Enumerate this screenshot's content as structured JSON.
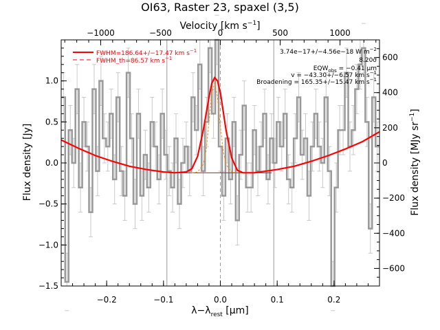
{
  "title": "OI63, Raster 23, spaxel (3,5)",
  "axis_labels": {
    "bottom_main": "λ−λ",
    "bottom_sub": "rest",
    "bottom_unit": " [μm]",
    "left": "Flux density [Jy]",
    "top_main": "Velocity [km s",
    "top_sup": "−1",
    "top_close": "]",
    "right_main": "Flux density [MJy sr",
    "right_sup": "−1",
    "right_close": "]"
  },
  "ticks": {
    "bottom": [
      "−0.2",
      "−0.1",
      "0.0",
      "0.1",
      "0.2"
    ],
    "left": [
      "−1.5",
      "−1.0",
      "−0.5",
      "0.0",
      "0.5",
      "1.0"
    ],
    "top": [
      "−1000",
      "−500",
      "0",
      "500",
      "1000"
    ],
    "right": [
      "−600",
      "−400",
      "−200",
      "0",
      "200",
      "400",
      "600"
    ]
  },
  "legend": [
    {
      "label": "FWHM=186.64+/−17.47 km s",
      "sup": "−1",
      "style": "solid",
      "color": "#ff0000"
    },
    {
      "label": "FWHM_th=86.57 km s",
      "sup": "−1",
      "style": "dashed",
      "color": "#ff0000"
    }
  ],
  "annotations": [
    {
      "text": "3.74e−17+/−4.56e−18 W m",
      "sup": "−2",
      "sub": ""
    },
    {
      "text": "8.20σ",
      "sup": "",
      "sub": ""
    },
    {
      "text": "EQW",
      "sub": "obs",
      "after": " = −0.41 μm",
      "sup": ""
    },
    {
      "text": "v = −43.30+/−6.57 km s",
      "sup": "−1",
      "sub": ""
    },
    {
      "text": "Broadening = 165.35+/−15.47 km s",
      "sup": "−1",
      "sub": ""
    }
  ],
  "colors": {
    "data": "#999999",
    "errorbar": "#c8c8c8",
    "fit": "#ff0000",
    "component": "#ff8c00",
    "vlines": "#999999",
    "axes": "#000000"
  },
  "chart_data": {
    "type": "line",
    "title": "OI63, Raster 23, spaxel (3,5)",
    "xlabel": "λ−λrest [μm]",
    "ylabel": "Flux density [Jy]",
    "x2label": "Velocity [km s−1]",
    "y2label": "Flux density [MJy sr−1]",
    "xlim": [
      -0.28,
      0.28
    ],
    "ylim": [
      -1.5,
      1.5
    ],
    "x2lim": [
      -1330,
      1330
    ],
    "y2lim": [
      -700,
      700
    ],
    "vlines": [
      -0.094,
      0.0,
      0.094
    ],
    "grid": false,
    "legend_position": "top-left",
    "annotation_position": "top-right",
    "series": [
      {
        "name": "data",
        "x": [
          -0.276,
          -0.27,
          -0.264,
          -0.258,
          -0.252,
          -0.246,
          -0.24,
          -0.234,
          -0.228,
          -0.222,
          -0.216,
          -0.21,
          -0.204,
          -0.198,
          -0.192,
          -0.186,
          -0.18,
          -0.174,
          -0.168,
          -0.162,
          -0.156,
          -0.15,
          -0.144,
          -0.138,
          -0.132,
          -0.126,
          -0.12,
          -0.114,
          -0.108,
          -0.102,
          -0.096,
          -0.09,
          -0.084,
          -0.078,
          -0.072,
          -0.066,
          -0.06,
          -0.054,
          -0.048,
          -0.042,
          -0.036,
          -0.03,
          -0.024,
          -0.018,
          -0.012,
          -0.006,
          0.0,
          0.006,
          0.012,
          0.018,
          0.024,
          0.03,
          0.036,
          0.042,
          0.048,
          0.054,
          0.06,
          0.066,
          0.072,
          0.078,
          0.084,
          0.09,
          0.096,
          0.102,
          0.108,
          0.114,
          0.12,
          0.126,
          0.132,
          0.138,
          0.144,
          0.15,
          0.156,
          0.162,
          0.168,
          0.174,
          0.18,
          0.186,
          0.192,
          0.198,
          0.204,
          0.21,
          0.216,
          0.222,
          0.228,
          0.234,
          0.24,
          0.246,
          0.252,
          0.258,
          0.264,
          0.27,
          0.276
        ],
        "y": [
          0.8,
          -1.45,
          0.4,
          0.0,
          0.9,
          -0.3,
          0.5,
          0.2,
          -0.6,
          0.9,
          -0.1,
          1.0,
          0.3,
          0.2,
          0.6,
          -0.2,
          0.8,
          -0.1,
          -0.4,
          1.1,
          0.3,
          -0.5,
          0.6,
          -0.4,
          0.1,
          -0.3,
          0.5,
          0.2,
          -0.2,
          0.6,
          0.1,
          -0.1,
          -0.3,
          0.3,
          -0.5,
          0.0,
          0.2,
          -0.1,
          0.8,
          0.4,
          1.2,
          -0.1,
          0.5,
          1.4,
          0.6,
          1.5,
          0.2,
          -0.4,
          0.3,
          -0.2,
          0.5,
          -0.7,
          0.1,
          0.7,
          -0.3,
          -0.3,
          0.4,
          -0.1,
          0.2,
          0.6,
          -0.2,
          0.3,
          0.0,
          0.5,
          0.2,
          0.6,
          -0.2,
          -0.3,
          0.3,
          0.8,
          0.1,
          0.3,
          -0.4,
          0.2,
          0.6,
          0.2,
          0.0,
          0.8,
          -0.1,
          -1.5,
          -0.3,
          0.4,
          0.4,
          1.1,
          0.2,
          0.4,
          0.9,
          1.2,
          1.4,
          0.5,
          -0.8,
          0.8,
          0.2
        ],
        "err": [
          0.3,
          0.35,
          0.3,
          0.3,
          0.3,
          0.3,
          0.3,
          0.3,
          0.3,
          0.3,
          0.3,
          0.3,
          0.3,
          0.3,
          0.3,
          0.3,
          0.3,
          0.3,
          0.3,
          0.3,
          0.3,
          0.3,
          0.3,
          0.3,
          0.3,
          0.3,
          0.3,
          0.3,
          0.3,
          0.3,
          0.3,
          0.3,
          0.3,
          0.3,
          0.3,
          0.3,
          0.3,
          0.3,
          0.3,
          0.3,
          0.3,
          0.3,
          0.3,
          0.3,
          0.3,
          0.3,
          0.3,
          0.3,
          0.3,
          0.3,
          0.3,
          0.3,
          0.3,
          0.3,
          0.3,
          0.3,
          0.3,
          0.3,
          0.3,
          0.3,
          0.3,
          0.3,
          0.3,
          0.3,
          0.3,
          0.3,
          0.3,
          0.3,
          0.3,
          0.3,
          0.3,
          0.3,
          0.3,
          0.3,
          0.3,
          0.3,
          0.3,
          0.3,
          0.3,
          0.3,
          0.3,
          0.3,
          0.3,
          0.3,
          0.3,
          0.3,
          0.3,
          0.3,
          0.3,
          0.3,
          0.3,
          0.3,
          0.3
        ]
      },
      {
        "name": "FWHM=186.64+/−17.47 km s−1",
        "style": "solid",
        "x": [
          -0.28,
          -0.25,
          -0.22,
          -0.19,
          -0.16,
          -0.13,
          -0.1,
          -0.08,
          -0.06,
          -0.05,
          -0.04,
          -0.03,
          -0.02,
          -0.015,
          -0.01,
          -0.005,
          0.0,
          0.01,
          0.02,
          0.03,
          0.04,
          0.06,
          0.08,
          0.1,
          0.13,
          0.16,
          0.19,
          0.22,
          0.25,
          0.28
        ],
        "y": [
          0.28,
          0.18,
          0.09,
          0.02,
          -0.04,
          -0.08,
          -0.11,
          -0.12,
          -0.11,
          -0.07,
          0.08,
          0.4,
          0.8,
          0.97,
          1.04,
          1.0,
          0.86,
          0.4,
          0.06,
          -0.09,
          -0.12,
          -0.12,
          -0.1,
          -0.08,
          -0.04,
          0.02,
          0.09,
          0.17,
          0.26,
          0.38
        ]
      },
      {
        "name": "FWHM_th=86.57 km s−1",
        "style": "dashed",
        "x": [
          -0.05,
          -0.04,
          -0.03,
          -0.025,
          -0.02,
          -0.015,
          -0.01,
          -0.005,
          0.0,
          0.005,
          0.01,
          0.02,
          0.03
        ],
        "y": [
          -0.12,
          -0.11,
          -0.02,
          0.15,
          0.5,
          0.85,
          0.98,
          0.8,
          0.45,
          0.15,
          -0.02,
          -0.11,
          -0.12
        ]
      },
      {
        "name": "continuum",
        "style": "solid",
        "x": [
          -0.09,
          0.09
        ],
        "y": [
          -0.12,
          -0.12
        ]
      }
    ]
  }
}
